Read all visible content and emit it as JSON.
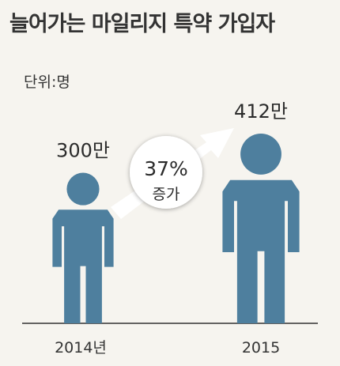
{
  "title": "늘어가는 마일리지 특약 가입자",
  "unit": "단위:명",
  "colors": {
    "figure": "#4e7f9e",
    "arrow": "#ffffff",
    "baseline": "#333333",
    "background": "#f6f4ef"
  },
  "chart_data": {
    "type": "bar",
    "categories": [
      "2014년",
      "2015"
    ],
    "values": [
      300,
      412
    ],
    "value_labels": [
      "300만",
      "412만"
    ],
    "growth": {
      "value": "37%",
      "text": "증가"
    }
  }
}
